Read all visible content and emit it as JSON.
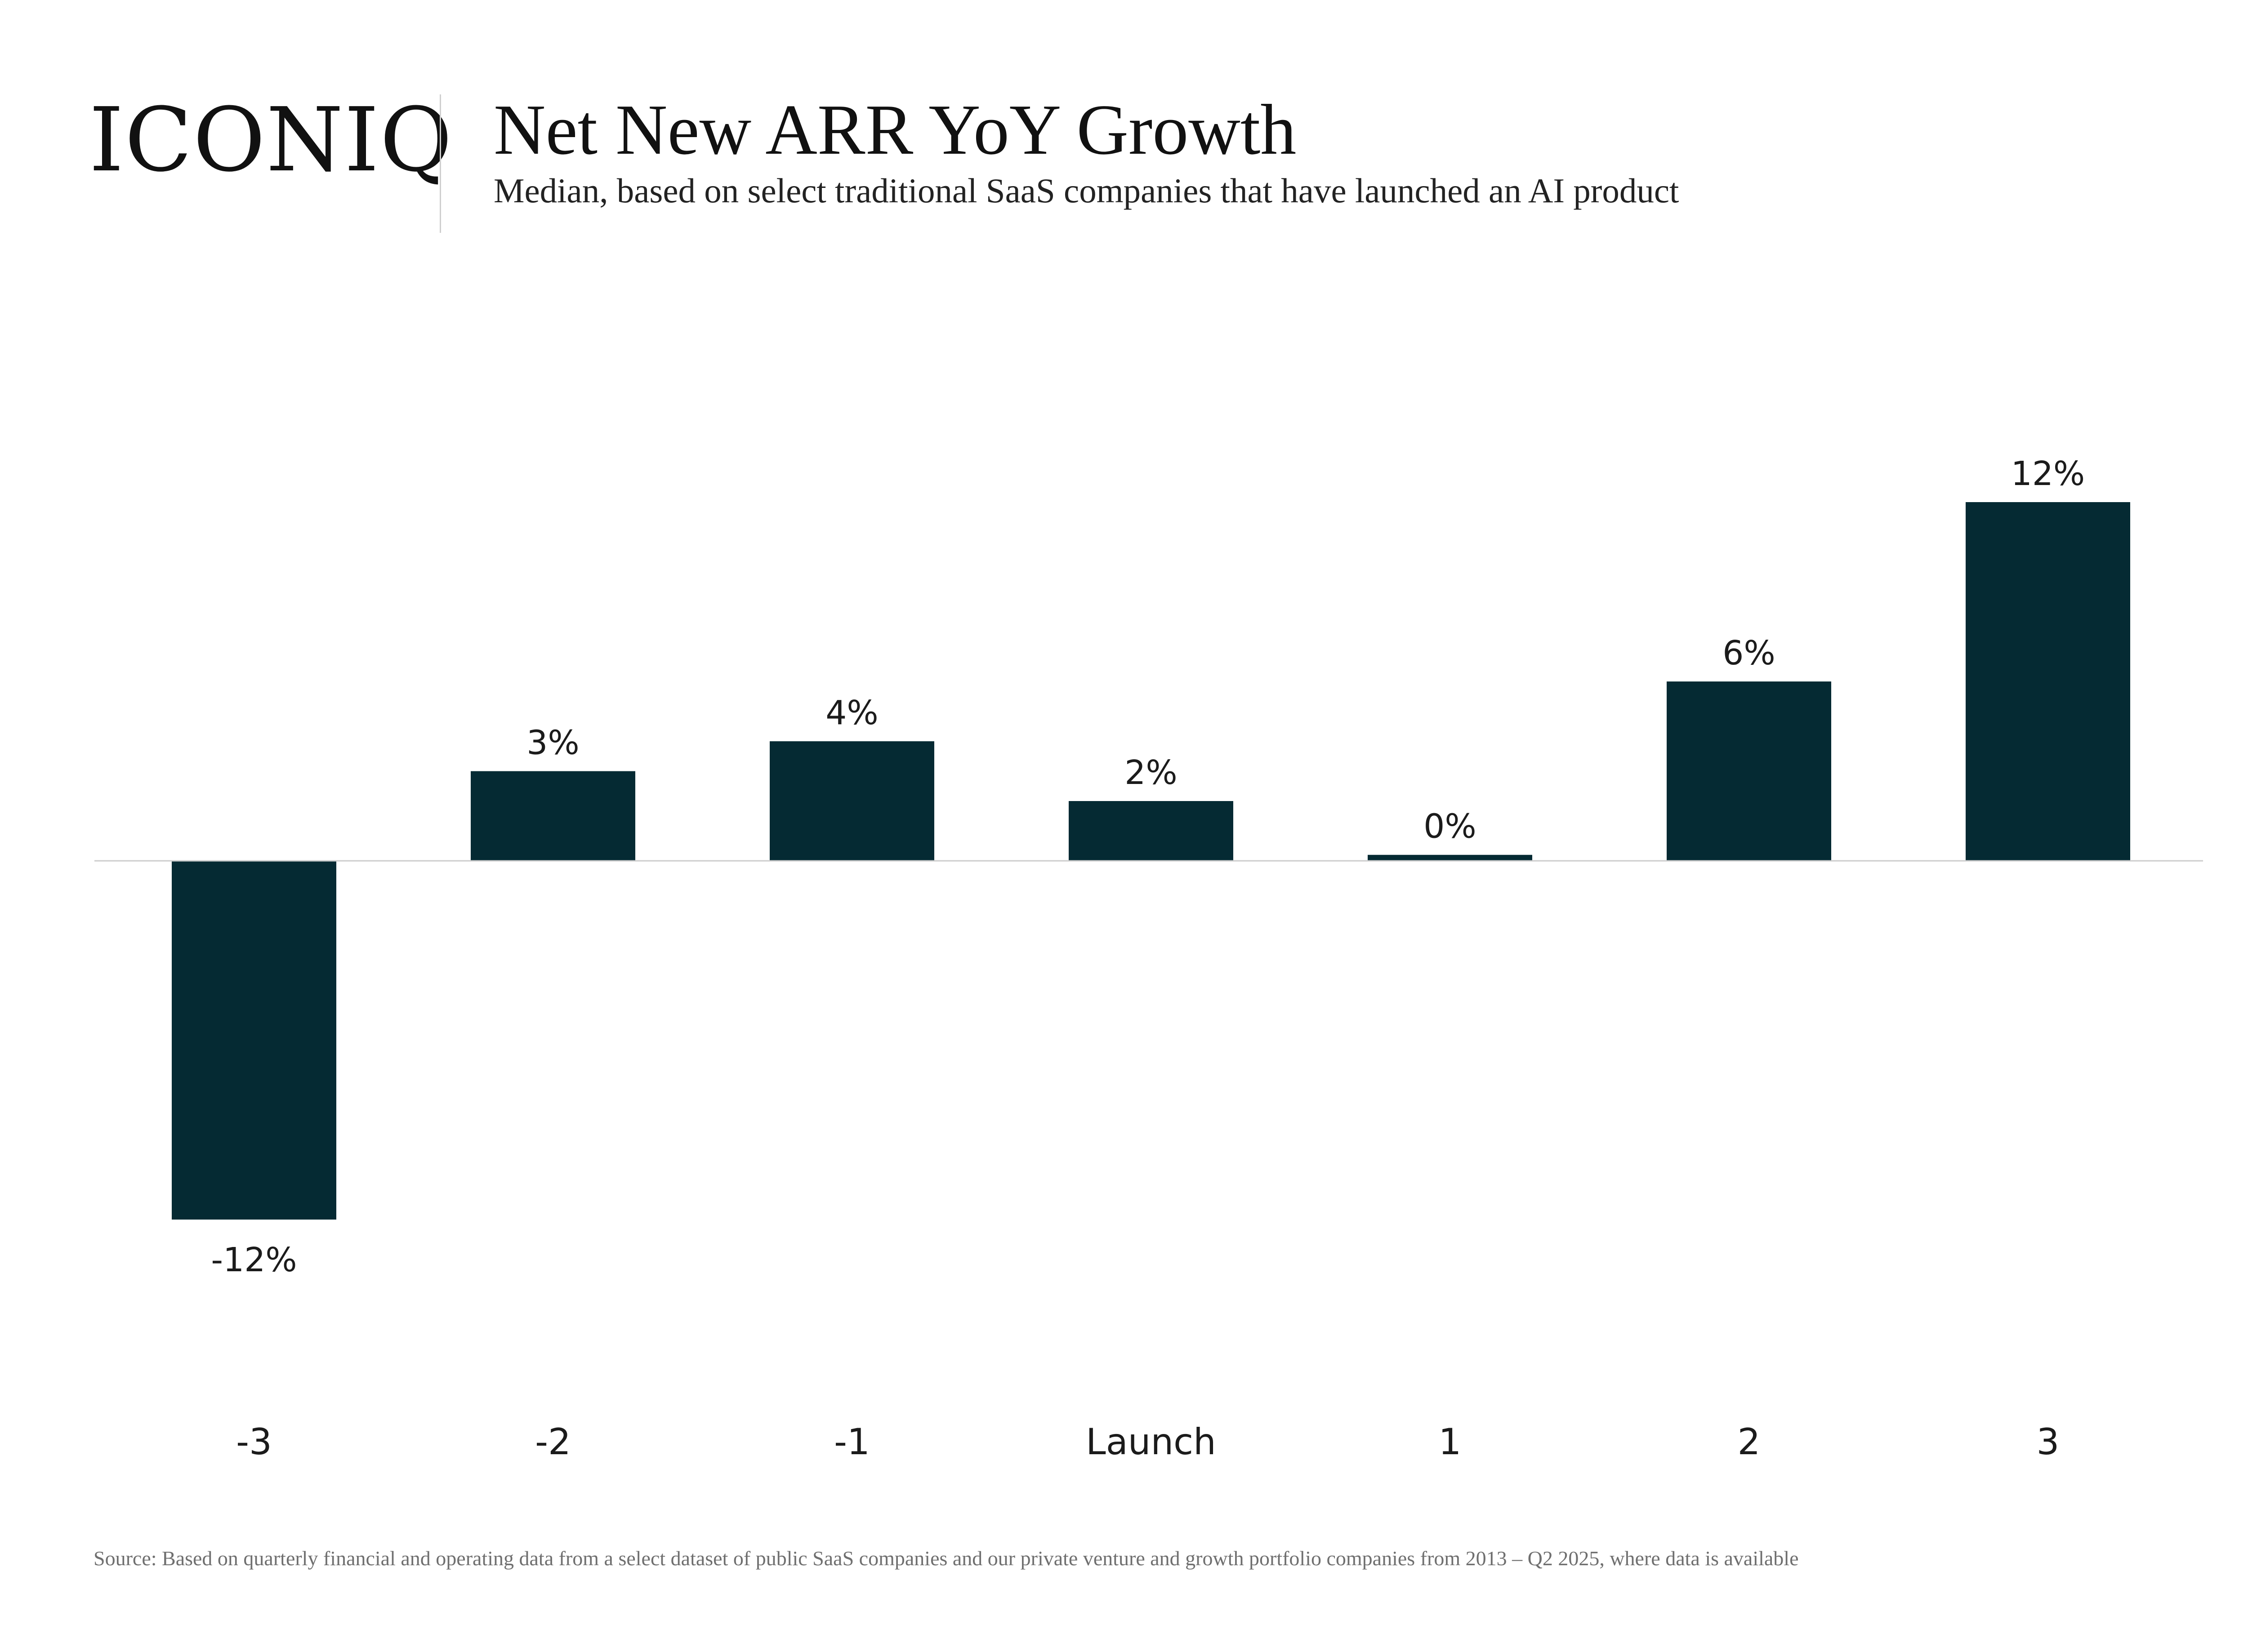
{
  "header": {
    "logo": "ICONIQ",
    "title": "Net New ARR YoY Growth",
    "subtitle": "Median, based on select traditional SaaS companies that have launched an AI product"
  },
  "footer": {
    "source": "Source: Based on quarterly financial and operating data from a select dataset of public SaaS companies and our private venture and growth portfolio companies from 2013 – Q2 2025, where data is available"
  },
  "colors": {
    "bar": "#052a33",
    "zero_line": "#cccccc"
  },
  "chart_data": {
    "type": "bar",
    "title": "Net New ARR YoY Growth",
    "subtitle": "Median, based on select traditional SaaS companies that have launched an AI product",
    "xlabel": "",
    "ylabel": "",
    "categories": [
      "-3",
      "-2",
      "-1",
      "Launch",
      "1",
      "2",
      "3"
    ],
    "values": [
      -12,
      3,
      4,
      2,
      0.2,
      6,
      12
    ],
    "data_labels": [
      "-12%",
      "3%",
      "4%",
      "2%",
      "0%",
      "6%",
      "12%"
    ],
    "unit": "%",
    "ylim": [
      -12,
      12
    ],
    "grid": false,
    "legend": "none"
  }
}
